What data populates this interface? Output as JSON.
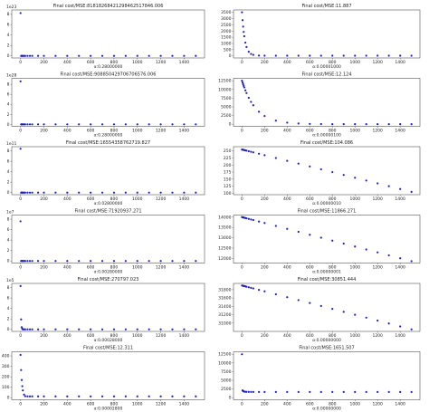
{
  "chart_data": [
    {
      "type": "scatter",
      "title": "Final cost/MSE:81818268421298462517846.006",
      "xlabel": "α:0.28000000",
      "offset_label": "1e23",
      "color": "#1f1fbf",
      "x": [
        0,
        5,
        10,
        15,
        20,
        30,
        40,
        60,
        80,
        100,
        150,
        200,
        300,
        400,
        500,
        600,
        700,
        800,
        900,
        1000,
        1100,
        1200,
        1300,
        1400,
        1500
      ],
      "values": [
        8.2,
        0,
        0,
        0,
        0,
        0,
        0,
        0,
        0,
        0,
        0,
        0,
        0,
        0,
        0,
        0,
        0,
        0,
        0,
        0,
        0,
        0,
        0,
        0,
        0
      ],
      "xlim": [
        -75,
        1575
      ],
      "ylim": [
        -0.4,
        8.8
      ],
      "xticks": [
        0,
        200,
        400,
        600,
        800,
        1000,
        1200,
        1400
      ],
      "yticks": [
        0,
        2,
        4,
        6,
        8
      ]
    },
    {
      "type": "scatter",
      "title": "Final cost/MSE:11.887",
      "xlabel": "α:0.00001000",
      "color": "#1f1fbf",
      "x": [
        0,
        5,
        10,
        15,
        20,
        30,
        40,
        60,
        80,
        100,
        150,
        200,
        300,
        400,
        500,
        600,
        700,
        800,
        900,
        1000,
        1100,
        1200,
        1300,
        1400,
        1500
      ],
      "values": [
        3512,
        2877,
        2358,
        1933,
        1584,
        1066,
        718,
        330,
        155,
        76,
        21,
        13,
        12,
        11.9,
        11.9,
        11.9,
        11.9,
        11.9,
        11.9,
        11.9,
        11.9,
        11.9,
        11.9,
        11.9,
        11.9
      ],
      "xlim": [
        -75,
        1575
      ],
      "ylim": [
        -170,
        3700
      ],
      "xticks": [
        0,
        200,
        400,
        600,
        800,
        1000,
        1200,
        1400
      ],
      "yticks": [
        0,
        500,
        1000,
        1500,
        2000,
        2500,
        3000,
        3500
      ]
    },
    {
      "type": "scatter",
      "title": "Final cost/MSE:908850429706706576.006",
      "xlabel": "α:0.28000000",
      "offset_label": "1e28",
      "color": "#1f1fbf",
      "x": [
        0,
        5,
        10,
        15,
        20,
        30,
        40,
        60,
        80,
        100,
        150,
        200,
        300,
        400,
        500,
        600,
        700,
        800,
        900,
        1000,
        1100,
        1200,
        1300,
        1400,
        1500
      ],
      "values": [
        8.6,
        0,
        0,
        0,
        0,
        0,
        0,
        0,
        0,
        0,
        0,
        0,
        0,
        0,
        0,
        0,
        0,
        0,
        0,
        0,
        0,
        0,
        0,
        0,
        0
      ],
      "xlim": [
        -75,
        1575
      ],
      "ylim": [
        -0.4,
        9.2
      ],
      "xticks": [
        0,
        200,
        400,
        600,
        800,
        1000,
        1200,
        1400
      ],
      "yticks": [
        0,
        2,
        4,
        6,
        8
      ]
    },
    {
      "type": "scatter",
      "title": "Final cost/MSE:12.124",
      "xlabel": "α:0.00000100",
      "color": "#1f1fbf",
      "x": [
        0,
        5,
        10,
        15,
        20,
        30,
        40,
        60,
        80,
        100,
        150,
        200,
        300,
        400,
        500,
        600,
        700,
        800,
        900,
        1000,
        1100,
        1200,
        1300,
        1400,
        1500
      ],
      "values": [
        12512,
        12002,
        11513,
        11043,
        10592,
        9747,
        8968,
        7594,
        6430,
        5448,
        3593,
        2372,
        1038,
        457,
        205,
        96,
        48,
        28,
        19,
        15,
        13,
        12.5,
        12.2,
        12.1,
        12.1
      ],
      "xlim": [
        -75,
        1575
      ],
      "ylim": [
        -600,
        13200
      ],
      "xticks": [
        0,
        200,
        400,
        600,
        800,
        1000,
        1200,
        1400
      ],
      "yticks": [
        0,
        2500,
        5000,
        7500,
        10000,
        12500
      ]
    },
    {
      "type": "scatter",
      "title": "Final cost/MSE:16554358762719.827",
      "xlabel": "α:0.02800000",
      "offset_label": "1e11",
      "color": "#1f1fbf",
      "x": [
        0,
        5,
        10,
        15,
        20,
        30,
        40,
        60,
        80,
        100,
        150,
        200,
        300,
        400,
        500,
        600,
        700,
        800,
        900,
        1000,
        1100,
        1200,
        1300,
        1400,
        1500
      ],
      "values": [
        8.4,
        0,
        0,
        0,
        0,
        0,
        0,
        0,
        0,
        0,
        0,
        0,
        0,
        0,
        0,
        0,
        0,
        0,
        0,
        0,
        0,
        0,
        0,
        0,
        0
      ],
      "xlim": [
        -75,
        1575
      ],
      "ylim": [
        -0.4,
        8.8
      ],
      "xticks": [
        0,
        200,
        400,
        600,
        800,
        1000,
        1200,
        1400
      ],
      "yticks": [
        0,
        2,
        4,
        6,
        8
      ]
    },
    {
      "type": "scatter",
      "title": "Final cost/MSE:104.086",
      "xlabel": "α:0.00000010",
      "color": "#1f1fbf",
      "x": [
        0,
        5,
        10,
        15,
        20,
        30,
        40,
        60,
        80,
        100,
        150,
        200,
        300,
        400,
        500,
        600,
        700,
        800,
        900,
        1000,
        1100,
        1200,
        1300,
        1400,
        1500
      ],
      "values": [
        255,
        254.5,
        254,
        253.5,
        253,
        252,
        251,
        249,
        247,
        245,
        240,
        235,
        225,
        215,
        205,
        195,
        185,
        175,
        165,
        155,
        145,
        135,
        125,
        115,
        105
      ],
      "xlim": [
        -75,
        1575
      ],
      "ylim": [
        95,
        265
      ],
      "xticks": [
        0,
        200,
        400,
        600,
        800,
        1000,
        1200,
        1400
      ],
      "yticks": [
        100,
        125,
        150,
        175,
        200,
        225,
        250
      ]
    },
    {
      "type": "scatter",
      "title": "Final cost/MSE:71920937.271",
      "xlabel": "α:0.00280000",
      "offset_label": "1e7",
      "color": "#1f1fbf",
      "x": [
        0,
        5,
        10,
        15,
        20,
        30,
        40,
        60,
        80,
        100,
        150,
        200,
        300,
        400,
        500,
        600,
        700,
        800,
        900,
        1000,
        1100,
        1200,
        1300,
        1400,
        1500
      ],
      "values": [
        7.6,
        0,
        0,
        0,
        0,
        0,
        0,
        0,
        0,
        0,
        0,
        0,
        0,
        0,
        0,
        0,
        0,
        0,
        0,
        0,
        0,
        0,
        0,
        0,
        0
      ],
      "xlim": [
        -75,
        1575
      ],
      "ylim": [
        -0.4,
        8.8
      ],
      "xticks": [
        0,
        200,
        400,
        600,
        800,
        1000,
        1200,
        1400
      ],
      "yticks": [
        0,
        2,
        4,
        6,
        8
      ]
    },
    {
      "type": "scatter",
      "title": "Final cost/MSE:11866.271",
      "xlabel": "α:0.00000001",
      "color": "#1f1fbf",
      "x": [
        0,
        5,
        10,
        15,
        20,
        30,
        40,
        60,
        80,
        100,
        150,
        200,
        300,
        400,
        500,
        600,
        700,
        800,
        900,
        1000,
        1100,
        1200,
        1300,
        1400,
        1500
      ],
      "values": [
        14000,
        13993,
        13986,
        13979,
        13972,
        13957,
        13943,
        13915,
        13886,
        13858,
        13787,
        13716,
        13574,
        13432,
        13290,
        13148,
        13006,
        12864,
        12722,
        12580,
        12438,
        12296,
        12154,
        12012,
        11870
      ],
      "xlim": [
        -75,
        1575
      ],
      "ylim": [
        11780,
        14100
      ],
      "xticks": [
        0,
        200,
        400,
        600,
        800,
        1000,
        1200,
        1400
      ],
      "yticks": [
        12000,
        12500,
        13000,
        13500,
        14000
      ]
    },
    {
      "type": "scatter",
      "title": "Final cost/MSE:270797.023",
      "xlabel": "α:0.00028000",
      "offset_label": "1e5",
      "color": "#1f1fbf",
      "x": [
        0,
        5,
        10,
        15,
        20,
        30,
        40,
        60,
        80,
        100,
        150,
        200,
        300,
        400,
        500,
        600,
        700,
        800,
        900,
        1000,
        1100,
        1200,
        1300,
        1400,
        1500
      ],
      "values": [
        8.3,
        1.9,
        0.4,
        0.1,
        0,
        0,
        0,
        0,
        0,
        0,
        0,
        0,
        0,
        0,
        0,
        0,
        0,
        0,
        0,
        0,
        0,
        0,
        0,
        0,
        0
      ],
      "xlim": [
        -75,
        1575
      ],
      "ylim": [
        -0.4,
        8.8
      ],
      "xticks": [
        0,
        200,
        400,
        600,
        800,
        1000,
        1200,
        1400
      ],
      "yticks": [
        0,
        2,
        4,
        6,
        8
      ]
    },
    {
      "type": "scatter",
      "title": "Final cost/MSE:30851.444",
      "xlabel": "α:0.00000000",
      "color": "#1f1fbf",
      "x": [
        0,
        5,
        10,
        15,
        20,
        30,
        40,
        60,
        80,
        100,
        150,
        200,
        300,
        400,
        500,
        600,
        700,
        800,
        900,
        1000,
        1100,
        1200,
        1300,
        1400,
        1500
      ],
      "values": [
        31900,
        31897,
        31893,
        31890,
        31886,
        31879,
        31872,
        31858,
        31844,
        31830,
        31795,
        31760,
        31690,
        31620,
        31550,
        31480,
        31410,
        31340,
        31270,
        31200,
        31130,
        31060,
        30990,
        30920,
        30850
      ],
      "xlim": [
        -75,
        1575
      ],
      "ylim": [
        30800,
        31950
      ],
      "xticks": [
        0,
        200,
        400,
        600,
        800,
        1000,
        1200,
        1400
      ],
      "yticks": [
        31000,
        31200,
        31400,
        31600,
        31800
      ]
    },
    {
      "type": "scatter",
      "title": "Final cost/MSE:12.311",
      "xlabel": "α:0.00002800",
      "color": "#1f1fbf",
      "x": [
        0,
        5,
        10,
        15,
        20,
        30,
        40,
        60,
        80,
        100,
        150,
        200,
        300,
        400,
        500,
        600,
        700,
        800,
        900,
        1000,
        1100,
        1200,
        1300,
        1400,
        1500
      ],
      "values": [
        410,
        265,
        170,
        110,
        70,
        30,
        14,
        13,
        12.5,
        12.4,
        12.35,
        12.33,
        12.32,
        12.31,
        12.31,
        12.31,
        12.31,
        12.31,
        12.31,
        12.31,
        12.31,
        12.31,
        12.31,
        12.31,
        12.31
      ],
      "xlim": [
        -75,
        1575
      ],
      "ylim": [
        -20,
        440
      ],
      "xticks": [
        0,
        200,
        400,
        600,
        800,
        1000,
        1200,
        1400
      ],
      "yticks": [
        0,
        100,
        200,
        300,
        400
      ]
    },
    {
      "type": "scatter",
      "title": "Final cost/MSE:1651.507",
      "xlabel": "α:0.00000000",
      "color": "#1f1fbf",
      "x": [
        0,
        5,
        10,
        15,
        20,
        30,
        40,
        60,
        80,
        100,
        150,
        200,
        300,
        400,
        500,
        600,
        700,
        800,
        900,
        1000,
        1100,
        1200,
        1300,
        1400,
        1500
      ],
      "values": [
        12500,
        2100,
        1900,
        1800,
        1750,
        1700,
        1680,
        1670,
        1660,
        1655,
        1652,
        1651.6,
        1651.5,
        1651.5,
        1651.5,
        1651.5,
        1651.5,
        1651.5,
        1651.5,
        1651.5,
        1651.5,
        1651.5,
        1651.5,
        1651.5,
        1651.5
      ],
      "xlim": [
        -75,
        1575
      ],
      "ylim": [
        -600,
        13200
      ],
      "xticks": [
        0,
        200,
        400,
        600,
        800,
        1000,
        1200,
        1400
      ],
      "yticks": [
        0,
        2500,
        5000,
        7500,
        10000,
        12500
      ]
    }
  ]
}
